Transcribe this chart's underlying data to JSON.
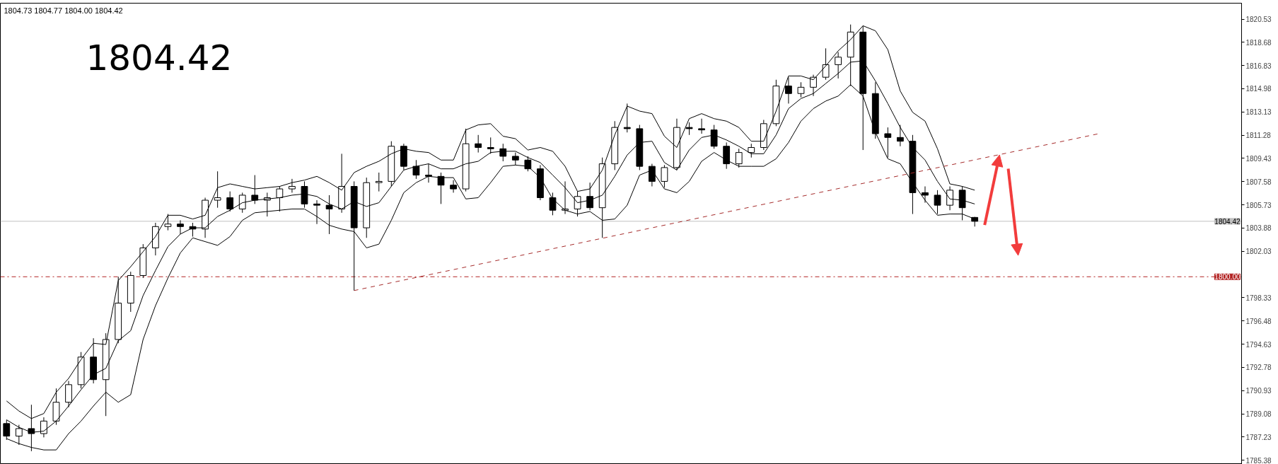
{
  "chart_data": {
    "type": "candlestick",
    "color": "#000000",
    "categories": [
      null,
      null,
      null,
      null,
      null,
      null,
      null,
      null,
      null,
      null,
      null,
      null,
      null,
      null,
      null,
      null,
      null,
      null,
      null,
      null,
      null,
      null,
      null,
      null,
      null,
      null,
      null,
      null,
      null,
      null,
      null,
      null,
      null,
      null,
      null,
      null,
      null,
      null,
      null,
      null,
      null,
      null,
      null,
      null,
      null,
      null,
      null,
      null,
      null,
      null,
      null,
      null,
      null,
      null,
      null,
      null,
      null,
      null,
      null,
      null,
      null,
      null,
      null,
      null,
      null,
      null,
      null,
      null,
      null,
      null,
      null,
      null,
      null,
      null,
      null,
      null,
      null,
      null,
      null,
      null,
      null,
      null,
      null,
      null,
      null,
      null,
      null,
      null,
      null,
      null,
      null,
      null,
      null,
      null,
      null,
      null,
      null,
      null,
      null,
      null
    ],
    "ohlc": [
      [
        1788.3,
        1788.6,
        1787.0,
        1787.3
      ],
      [
        1787.3,
        1788.2,
        1786.6,
        1787.9
      ],
      [
        1787.9,
        1789.8,
        1786.1,
        1787.5
      ],
      [
        1787.5,
        1788.8,
        1787.2,
        1788.5
      ],
      [
        1788.5,
        1791.1,
        1788.2,
        1790.0
      ],
      [
        1790.0,
        1791.7,
        1789.6,
        1791.4
      ],
      [
        1791.4,
        1794.0,
        1791.1,
        1793.6
      ],
      [
        1793.6,
        1795.1,
        1791.5,
        1791.8
      ],
      [
        1791.8,
        1795.5,
        1788.9,
        1795.0
      ],
      [
        1795.0,
        1800.0,
        1794.7,
        1797.9
      ],
      [
        1797.9,
        1800.4,
        1797.2,
        1800.1
      ],
      [
        1800.1,
        1802.6,
        1799.9,
        1802.3
      ],
      [
        1802.3,
        1804.3,
        1801.7,
        1804.0
      ],
      [
        1804.0,
        1805.0,
        1803.7,
        1804.2
      ],
      [
        1804.2,
        1804.5,
        1803.4,
        1804.0
      ],
      [
        1804.0,
        1804.3,
        1803.2,
        1803.8
      ],
      [
        1803.8,
        1806.3,
        1803.1,
        1806.1
      ],
      [
        1806.1,
        1808.4,
        1805.5,
        1806.3
      ],
      [
        1806.3,
        1806.8,
        1805.2,
        1805.4
      ],
      [
        1805.4,
        1806.7,
        1805.1,
        1806.5
      ],
      [
        1806.5,
        1808.1,
        1805.8,
        1806.1
      ],
      [
        1806.1,
        1806.7,
        1804.8,
        1806.3
      ],
      [
        1806.3,
        1807.2,
        1805.2,
        1807.0
      ],
      [
        1807.0,
        1807.8,
        1806.7,
        1807.2
      ],
      [
        1807.2,
        1807.6,
        1805.5,
        1805.8
      ],
      [
        1805.8,
        1806.1,
        1804.2,
        1805.7
      ],
      [
        1805.7,
        1806.5,
        1803.4,
        1805.4
      ],
      [
        1805.4,
        1809.8,
        1805.1,
        1807.2
      ],
      [
        1807.2,
        1807.6,
        1798.9,
        1803.9
      ],
      [
        1803.9,
        1807.9,
        1803.1,
        1807.5
      ],
      [
        1807.5,
        1808.3,
        1806.8,
        1807.6
      ],
      [
        1807.6,
        1810.8,
        1807.2,
        1810.4
      ],
      [
        1810.4,
        1810.6,
        1808.5,
        1808.8
      ],
      [
        1808.8,
        1809.3,
        1807.8,
        1808.1
      ],
      [
        1808.1,
        1809.0,
        1807.5,
        1808.0
      ],
      [
        1808.0,
        1808.3,
        1805.8,
        1807.3
      ],
      [
        1807.3,
        1807.7,
        1806.7,
        1807.0
      ],
      [
        1807.0,
        1811.8,
        1806.8,
        1810.6
      ],
      [
        1810.6,
        1811.3,
        1809.9,
        1810.3
      ],
      [
        1810.3,
        1811.1,
        1809.8,
        1810.2
      ],
      [
        1810.2,
        1810.6,
        1809.2,
        1809.6
      ],
      [
        1809.6,
        1809.9,
        1808.9,
        1809.3
      ],
      [
        1809.3,
        1809.6,
        1808.4,
        1808.6
      ],
      [
        1808.6,
        1808.9,
        1806.1,
        1806.3
      ],
      [
        1806.3,
        1806.7,
        1804.9,
        1805.3
      ],
      [
        1805.3,
        1807.6,
        1805.0,
        1805.4
      ],
      [
        1805.4,
        1806.8,
        1804.8,
        1806.4
      ],
      [
        1806.4,
        1807.5,
        1805.3,
        1805.5
      ],
      [
        1805.5,
        1809.5,
        1803.1,
        1809.0
      ],
      [
        1809.0,
        1812.4,
        1808.5,
        1811.9
      ],
      [
        1811.9,
        1813.8,
        1811.5,
        1811.8
      ],
      [
        1811.8,
        1812.1,
        1808.5,
        1808.8
      ],
      [
        1808.8,
        1809.0,
        1807.2,
        1807.6
      ],
      [
        1807.6,
        1808.9,
        1807.1,
        1808.7
      ],
      [
        1808.7,
        1812.6,
        1808.5,
        1811.9
      ],
      [
        1811.9,
        1812.3,
        1811.3,
        1811.8
      ],
      [
        1811.8,
        1812.6,
        1811.4,
        1811.7
      ],
      [
        1811.7,
        1812.1,
        1810.2,
        1810.4
      ],
      [
        1810.4,
        1810.7,
        1808.6,
        1809.0
      ],
      [
        1809.0,
        1810.2,
        1808.7,
        1809.9
      ],
      [
        1809.9,
        1810.6,
        1809.5,
        1810.3
      ],
      [
        1810.3,
        1812.5,
        1810.1,
        1812.2
      ],
      [
        1812.2,
        1815.7,
        1812.0,
        1815.2
      ],
      [
        1815.2,
        1815.9,
        1813.8,
        1814.6
      ],
      [
        1814.6,
        1815.5,
        1814.3,
        1815.1
      ],
      [
        1815.1,
        1816.1,
        1814.4,
        1815.9
      ],
      [
        1815.9,
        1818.2,
        1815.7,
        1816.9
      ],
      [
        1816.9,
        1817.9,
        1815.8,
        1817.5
      ],
      [
        1817.5,
        1820.1,
        1815.2,
        1819.5
      ],
      [
        1819.5,
        1820.0,
        1810.1,
        1814.6
      ],
      [
        1814.6,
        1815.5,
        1811.0,
        1811.4
      ],
      [
        1811.4,
        1811.9,
        1809.5,
        1811.1
      ],
      [
        1811.1,
        1812.1,
        1810.4,
        1810.8
      ],
      [
        1810.8,
        1811.3,
        1805.0,
        1806.7
      ],
      [
        1806.7,
        1807.2,
        1805.9,
        1806.5
      ],
      [
        1806.5,
        1806.9,
        1805.0,
        1805.7
      ],
      [
        1805.7,
        1807.2,
        1805.3,
        1806.9
      ],
      [
        1806.9,
        1807.2,
        1804.5,
        1805.5
      ],
      [
        1804.73,
        1804.77,
        1804.0,
        1804.42
      ],
      null,
      null,
      null,
      null,
      null,
      null,
      null,
      null,
      null,
      null,
      null,
      null,
      null,
      null,
      null,
      null,
      null,
      null,
      null,
      null,
      null
    ],
    "series": [
      {
        "type": "line",
        "color": "#000000",
        "values": [
          1790.1,
          1789.3,
          1788.7,
          1789.1,
          1790.8,
          1791.9,
          1793.4,
          1794.7,
          1794.6,
          1799.7,
          1800.8,
          1802.0,
          1803.2,
          1804.9,
          1804.9,
          1804.6,
          1804.9,
          1807.1,
          1807.4,
          1807.2,
          1807.0,
          1807.1,
          1807.2,
          1807.5,
          1807.7,
          1808.0,
          1807.5,
          1806.9,
          1808.3,
          1808.8,
          1809.2,
          1809.8,
          1810.2,
          1810.0,
          1809.9,
          1809.3,
          1809.3,
          1811.7,
          1812.1,
          1812.2,
          1811.2,
          1811.0,
          1810.1,
          1810.3,
          1810.0,
          1808.8,
          1806.8,
          1807.0,
          1808.5,
          1811.3,
          1813.6,
          1813.2,
          1813.0,
          1811.2,
          1810.3,
          1812.6,
          1813.0,
          1812.6,
          1812.4,
          1811.9,
          1810.8,
          1810.8,
          1813.2,
          1816.0,
          1816.0,
          1815.7,
          1816.8,
          1818.0,
          1818.9,
          1820.0,
          1819.6,
          1818.1,
          1814.8,
          1813.1,
          1812.4,
          1810.2,
          1807.4,
          1807.2,
          1806.9,
          null,
          null,
          null,
          null,
          null,
          null,
          null,
          null,
          null,
          null,
          null,
          null,
          null,
          null,
          null,
          null,
          null,
          null,
          null,
          null,
          null
        ]
      },
      {
        "type": "line",
        "color": "#000000",
        "values": [
          1788.6,
          1788.0,
          1787.6,
          1787.7,
          1788.5,
          1789.7,
          1791.0,
          1792.2,
          1792.7,
          1794.9,
          1795.7,
          1798.5,
          1800.5,
          1802.4,
          1803.4,
          1803.9,
          1803.9,
          1804.8,
          1805.3,
          1805.9,
          1806.1,
          1806.2,
          1806.3,
          1806.5,
          1806.6,
          1806.4,
          1805.8,
          1805.4,
          1806.0,
          1805.6,
          1805.9,
          1807.2,
          1808.5,
          1808.8,
          1809.0,
          1808.6,
          1808.6,
          1809.0,
          1809.2,
          1809.9,
          1810.0,
          1810.0,
          1809.5,
          1809.1,
          1808.1,
          1807.1,
          1805.9,
          1806.1,
          1806.5,
          1808.0,
          1809.7,
          1810.7,
          1810.8,
          1809.1,
          1808.5,
          1810.1,
          1811.1,
          1811.3,
          1810.9,
          1810.4,
          1809.8,
          1809.8,
          1811.3,
          1813.4,
          1814.2,
          1814.6,
          1815.4,
          1816.2,
          1817.1,
          1817.2,
          1815.6,
          1813.8,
          1811.9,
          1810.3,
          1809.3,
          1807.6,
          1806.2,
          1806.1,
          1805.8,
          null,
          null,
          null,
          null,
          null,
          null,
          null,
          null,
          null,
          null,
          null,
          null,
          null,
          null,
          null,
          null,
          null,
          null,
          null,
          null,
          null
        ]
      },
      {
        "type": "line",
        "color": "#000000",
        "values": [
          1787.1,
          1786.7,
          1786.4,
          1786.2,
          1786.2,
          1787.5,
          1788.5,
          1789.7,
          1790.8,
          1790.0,
          1790.6,
          1795.0,
          1797.7,
          1799.9,
          1801.9,
          1803.1,
          1802.8,
          1802.5,
          1803.2,
          1804.5,
          1805.1,
          1805.2,
          1805.3,
          1805.4,
          1805.4,
          1804.8,
          1804.1,
          1803.8,
          1803.6,
          1802.3,
          1802.6,
          1804.5,
          1806.7,
          1807.5,
          1808.0,
          1807.9,
          1807.9,
          1806.2,
          1806.3,
          1807.5,
          1808.8,
          1808.9,
          1808.8,
          1807.9,
          1806.2,
          1805.3,
          1805.0,
          1805.2,
          1804.5,
          1804.6,
          1805.7,
          1808.1,
          1808.5,
          1807.0,
          1806.7,
          1807.6,
          1809.2,
          1809.9,
          1809.3,
          1808.8,
          1808.8,
          1808.8,
          1809.4,
          1810.7,
          1812.4,
          1813.4,
          1814.0,
          1814.4,
          1815.3,
          1814.4,
          1811.5,
          1809.4,
          1809.0,
          1807.5,
          1806.1,
          1804.9,
          1805.0,
          1805.0,
          1804.6,
          null,
          null,
          null,
          null,
          null,
          null,
          null,
          null,
          null,
          null,
          null,
          null,
          null,
          null,
          null,
          null,
          null,
          null,
          null,
          null,
          null
        ]
      },
      {
        "type": "line",
        "color": "#a52a2a",
        "line_style": "dashed",
        "values": [
          null,
          null,
          null,
          null,
          null,
          null,
          null,
          null,
          null,
          null,
          null,
          null,
          null,
          null,
          null,
          null,
          null,
          null,
          null,
          null,
          null,
          null,
          null,
          null,
          null,
          null,
          null,
          null,
          1798.9,
          null,
          null,
          null,
          null,
          null,
          null,
          null,
          null,
          null,
          null,
          null,
          null,
          null,
          null,
          null,
          null,
          null,
          null,
          null,
          null,
          null,
          null,
          null,
          null,
          null,
          null,
          null,
          null,
          null,
          null,
          null,
          null,
          null,
          null,
          null,
          null,
          null,
          null,
          null,
          null,
          null,
          null,
          null,
          null,
          null,
          null,
          null,
          null,
          null,
          null,
          null,
          null,
          null,
          null,
          null,
          null,
          null,
          null,
          null,
          1811.4,
          null,
          null,
          null,
          null,
          null,
          null,
          null,
          null,
          null,
          null,
          null
        ]
      }
    ],
    "ylim": [
      1785.05,
      1821.8
    ],
    "yticks": [
      1785.38,
      1787.23,
      1789.08,
      1790.93,
      1792.78,
      1794.63,
      1796.48,
      1798.33,
      1802.03,
      1803.88,
      1805.73,
      1807.58,
      1809.43,
      1811.28,
      1813.13,
      1814.98,
      1816.83,
      1818.68,
      1820.53
    ],
    "ref_lines": [
      {
        "axis": "y",
        "value": 1804.42,
        "label": "1804.42",
        "color": "#c0c0c0"
      },
      {
        "axis": "y",
        "value": 1800.0,
        "label": "1800.00",
        "color": "#b22222",
        "line_style": "dashdot"
      }
    ],
    "annotations": [
      "1804.73 1804.77 1804.00 1804.42",
      "1804.42"
    ],
    "tick_labels": "y",
    "grid": false
  }
}
